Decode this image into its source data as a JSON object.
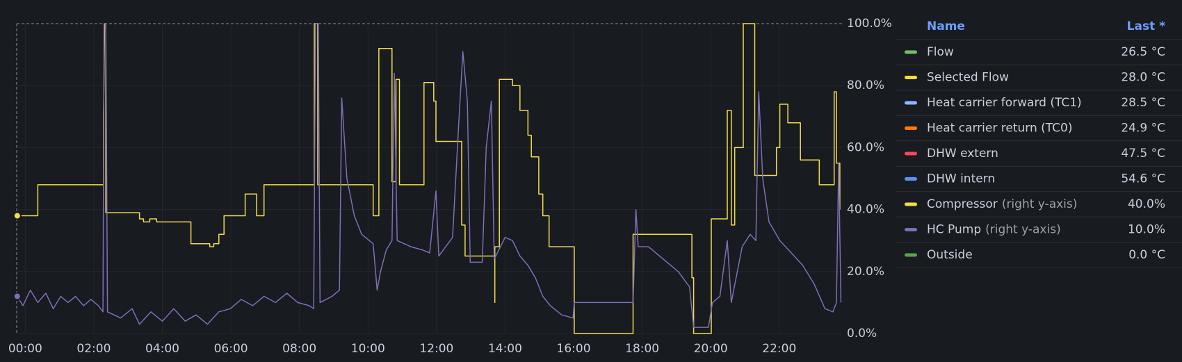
{
  "chart_data": {
    "type": "line",
    "xlim": [
      -15,
      1431
    ],
    "ylim": [
      0,
      100
    ],
    "grid": true,
    "xticks": [
      {
        "value": 0,
        "label": "00:00"
      },
      {
        "value": 120,
        "label": "02:00"
      },
      {
        "value": 240,
        "label": "04:00"
      },
      {
        "value": 360,
        "label": "06:00"
      },
      {
        "value": 480,
        "label": "08:00"
      },
      {
        "value": 600,
        "label": "10:00"
      },
      {
        "value": 720,
        "label": "12:00"
      },
      {
        "value": 840,
        "label": "14:00"
      },
      {
        "value": 960,
        "label": "16:00"
      },
      {
        "value": 1080,
        "label": "18:00"
      },
      {
        "value": 1200,
        "label": "20:00"
      },
      {
        "value": 1320,
        "label": "22:00"
      }
    ],
    "yticks": [
      {
        "value": 0,
        "label": "0.0%"
      },
      {
        "value": 20,
        "label": "20.0%"
      },
      {
        "value": 40,
        "label": "40.0%"
      },
      {
        "value": 60,
        "label": "60.0%"
      },
      {
        "value": 80,
        "label": "80.0%"
      },
      {
        "value": 100,
        "label": "100.0%"
      }
    ],
    "legend": {
      "name_header": "Name",
      "value_header": "Last *"
    },
    "series": [
      {
        "name": "Flow",
        "color": "#73bf69",
        "last": "26.5 °C"
      },
      {
        "name": "Selected Flow",
        "color": "#fade2a",
        "last": "28.0 °C"
      },
      {
        "name": "Heat carrier forward (TC1)",
        "color": "#8ab8ff",
        "last": "28.5 °C"
      },
      {
        "name": "Heat carrier return (TC0)",
        "color": "#ff780a",
        "last": "24.9 °C"
      },
      {
        "name": "DHW extern",
        "color": "#f2495c",
        "last": "47.5 °C"
      },
      {
        "name": "DHW intern",
        "color": "#5794f2",
        "last": "54.6 °C"
      },
      {
        "name": "Compressor",
        "note": "(right y-axis)",
        "color": "#f2dc4e",
        "last": "40.0%",
        "x": [
          -14,
          22,
          22,
          137,
          137,
          139,
          141,
          141,
          200,
          200,
          207,
          207,
          218,
          218,
          230,
          230,
          290,
          290,
          323,
          323,
          330,
          330,
          339,
          339,
          348,
          348,
          385,
          385,
          405,
          405,
          418,
          418,
          506,
          506,
          512,
          512,
          609,
          609,
          619,
          619,
          642,
          642,
          649,
          649,
          655,
          655,
          698,
          698,
          715,
          715,
          719,
          719,
          764,
          764,
          770,
          770,
          822,
          822,
          822,
          830,
          830,
          853,
          853,
          866,
          866,
          880,
          880,
          886,
          886,
          899,
          899,
          906,
          906,
          917,
          917,
          961,
          961,
          1064,
          1064,
          1167,
          1167,
          1170,
          1170,
          1201,
          1201,
          1229,
          1229,
          1236,
          1236,
          1242,
          1242,
          1257,
          1257,
          1277,
          1277,
          1315,
          1315,
          1321,
          1321,
          1335,
          1335,
          1357,
          1357,
          1390,
          1390,
          1416,
          1416,
          1420,
          1420,
          1426,
          1426
        ],
        "values": [
          38,
          38,
          48,
          48,
          70,
          100,
          100,
          39,
          39,
          37,
          37,
          36,
          36,
          37,
          37,
          36,
          36,
          29,
          29,
          28,
          28,
          29,
          29,
          32,
          32,
          38,
          38,
          45,
          45,
          38,
          38,
          48,
          48,
          100,
          100,
          48,
          48,
          38,
          38,
          92,
          92,
          49,
          49,
          82,
          82,
          48,
          48,
          81,
          81,
          75,
          75,
          62,
          62,
          35,
          35,
          25,
          25,
          10,
          28,
          28,
          82,
          82,
          80,
          80,
          72,
          72,
          64,
          64,
          57,
          57,
          45,
          45,
          38,
          38,
          28,
          28,
          0,
          0,
          32,
          32,
          18,
          18,
          0,
          0,
          37,
          37,
          72,
          72,
          35,
          35,
          60,
          60,
          100,
          100,
          51,
          51,
          60,
          60,
          74,
          74,
          68,
          68,
          56,
          56,
          48,
          48,
          78,
          78,
          55,
          55,
          40
        ]
      },
      {
        "name": "HC Pump",
        "note": "(right y-axis)",
        "color": "#7d6fb8",
        "last": "10.0%",
        "x": [
          -14,
          -4,
          9,
          22,
          36,
          49,
          62,
          75,
          88,
          102,
          115,
          128,
          136,
          138,
          141,
          144,
          167,
          187,
          200,
          220,
          240,
          260,
          280,
          299,
          319,
          339,
          359,
          378,
          398,
          418,
          438,
          458,
          477,
          497,
          505,
          508,
          513,
          516,
          537,
          550,
          554,
          563,
          576,
          589,
          609,
          616,
          622,
          632,
          642,
          646,
          651,
          675,
          695,
          708,
          719,
          724,
          748,
          758,
          766,
          774,
          779,
          800,
          807,
          816,
          821,
          840,
          853,
          866,
          880,
          893,
          906,
          919,
          939,
          959,
          961,
          1064,
          1069,
          1073,
          1091,
          1117,
          1143,
          1163,
          1170,
          1196,
          1203,
          1216,
          1229,
          1236,
          1255,
          1269,
          1279,
          1284,
          1291,
          1302,
          1321,
          1341,
          1361,
          1381,
          1400,
          1414,
          1420,
          1424,
          1428
        ],
        "values": [
          12,
          9,
          14,
          10,
          13,
          8,
          12,
          10,
          12,
          9,
          11,
          9,
          7,
          100,
          100,
          7,
          5,
          8,
          3,
          7,
          4,
          8,
          4,
          6,
          3,
          7,
          8,
          11,
          9,
          12,
          10,
          13,
          10,
          9,
          8,
          100,
          100,
          10,
          12,
          14,
          76,
          50,
          38,
          32,
          29,
          14,
          20,
          27,
          30,
          84,
          30,
          28,
          27,
          26,
          46,
          25,
          31,
          65,
          91,
          75,
          23,
          23,
          60,
          75,
          24,
          31,
          30,
          25,
          22,
          18,
          12,
          9,
          6,
          5,
          10,
          10,
          40,
          28,
          28,
          24,
          20,
          15,
          2,
          2,
          10,
          12,
          30,
          10,
          28,
          32,
          30,
          78,
          50,
          36,
          30,
          26,
          22,
          16,
          8,
          7,
          10,
          55,
          10
        ]
      },
      {
        "name": "Outside",
        "color": "#56a64b",
        "last": "0.0 °C"
      }
    ]
  }
}
